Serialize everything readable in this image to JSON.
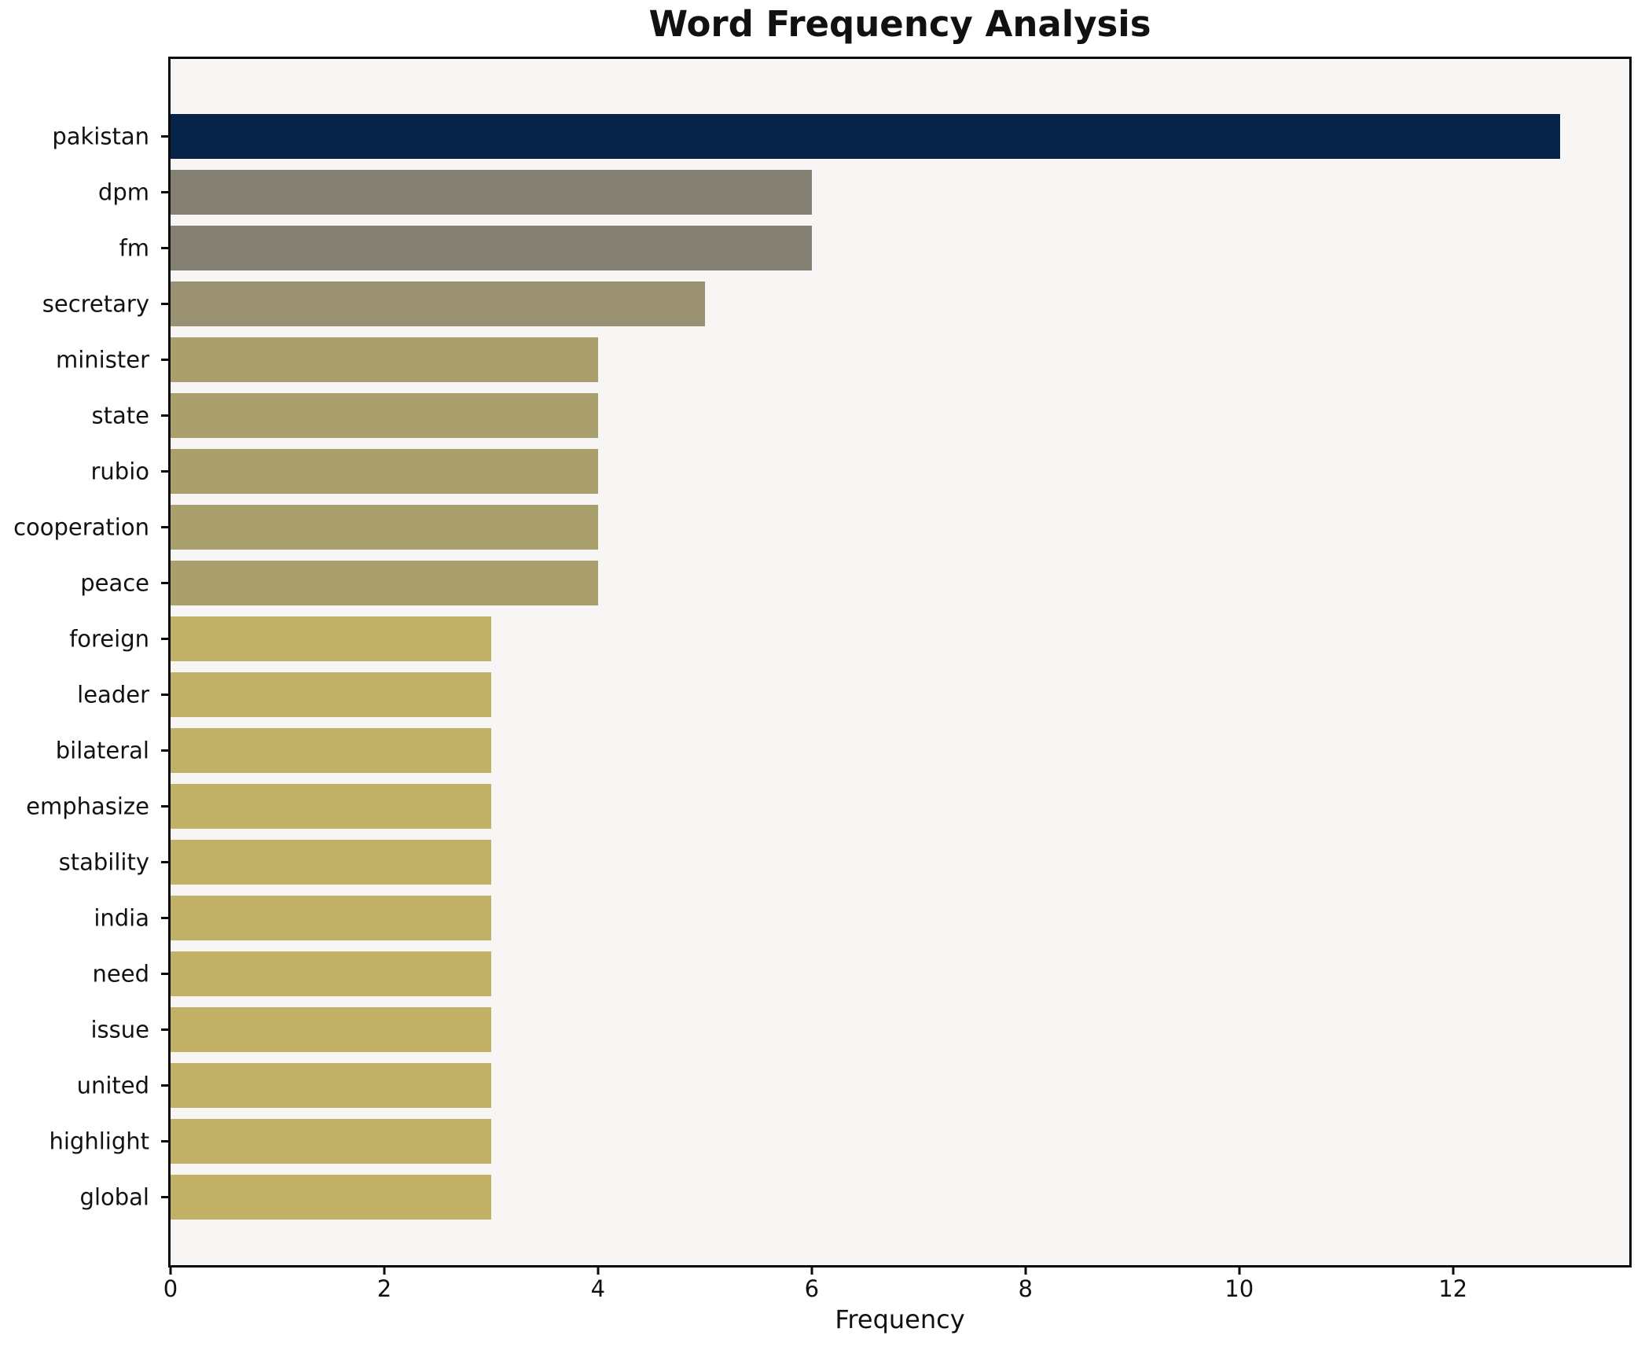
{
  "chart_data": {
    "type": "bar",
    "orientation": "horizontal",
    "title": "Word Frequency Analysis",
    "xlabel": "Frequency",
    "ylabel": "",
    "categories": [
      "pakistan",
      "dpm",
      "fm",
      "secretary",
      "minister",
      "state",
      "rubio",
      "cooperation",
      "peace",
      "foreign",
      "leader",
      "bilateral",
      "emphasize",
      "stability",
      "india",
      "need",
      "issue",
      "united",
      "highlight",
      "global"
    ],
    "values": [
      13,
      6,
      6,
      5,
      4,
      4,
      4,
      4,
      4,
      3,
      3,
      3,
      3,
      3,
      3,
      3,
      3,
      3,
      3,
      3
    ],
    "bar_colors": [
      "#062349",
      "#848073",
      "#848073",
      "#9a9172",
      "#a9a06e",
      "#a9a06e",
      "#a9a06e",
      "#a9a06e",
      "#a9a06e",
      "#c1b166",
      "#c1b166",
      "#c1b166",
      "#c1b166",
      "#c1b166",
      "#c1b166",
      "#c1b166",
      "#c1b166",
      "#c1b166",
      "#c1b166",
      "#c1b166"
    ],
    "xticks": [
      0,
      2,
      4,
      6,
      8,
      10,
      12
    ],
    "xlim": [
      0,
      13.65
    ],
    "grid": false,
    "legend_position": "none",
    "plot_bg": "#f7f6f5",
    "fig_bg": "#ffffff",
    "spine_color": "#0a0a0a",
    "text_color": "#111111"
  }
}
